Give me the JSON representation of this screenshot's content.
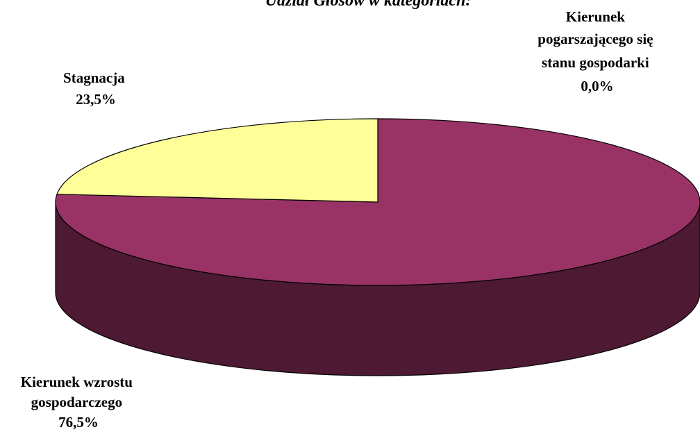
{
  "chart_data": {
    "type": "pie",
    "title": "Udział Głosów w kategoriach:",
    "slices": [
      {
        "label_lines": [
          "Kierunek wzrostu",
          "gospodarczego"
        ],
        "value": 76.5,
        "value_text": "76,5%",
        "color": "#993366",
        "side_color": "#4d1933"
      },
      {
        "label_lines": [
          "Stagnacja"
        ],
        "value": 23.5,
        "value_text": "23,5%",
        "color": "#ffff99",
        "side_color": "#7f7f4c"
      },
      {
        "label_lines": [
          "Kierunek",
          "pogarszającego się",
          "stanu gospodarki"
        ],
        "value": 0.0,
        "value_text": "0,0%",
        "color": "#9999ff",
        "side_color": "#4c4c7f"
      }
    ],
    "legend": "none",
    "three_d": true
  }
}
